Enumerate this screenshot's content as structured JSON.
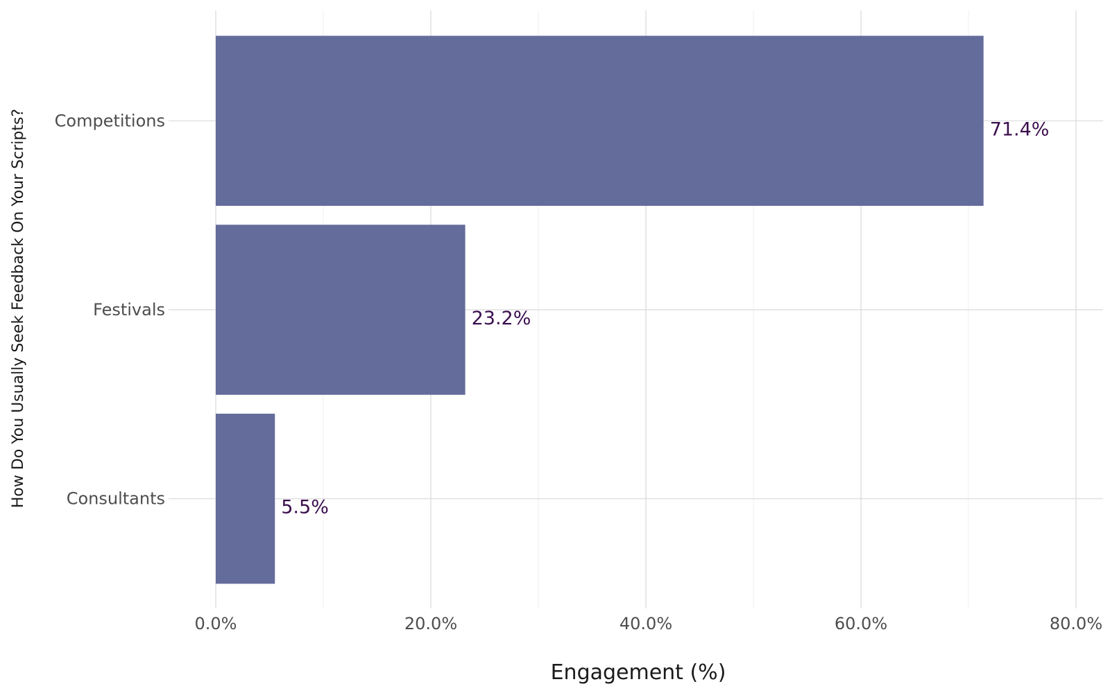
{
  "chart_data": {
    "type": "bar",
    "orientation": "horizontal",
    "categories": [
      "Competitions",
      "Festivals",
      "Consultants"
    ],
    "values": [
      71.4,
      23.2,
      5.5
    ],
    "data_labels": [
      "71.4%",
      "23.2%",
      "5.5%"
    ],
    "title": "",
    "xlabel": "Engagement (%)",
    "ylabel": "How Do You Usually Seek Feedback On Your Scripts?",
    "xlim": [
      0,
      82
    ],
    "xticks": [
      0,
      20,
      40,
      60,
      80
    ],
    "xtick_labels": [
      "0.0%",
      "20.0%",
      "40.0%",
      "60.0%",
      "80.0%"
    ],
    "grid": true,
    "legend": "none",
    "colors": {
      "bar": "#646c9c",
      "data_label": "#3b0f4f",
      "grid_major": "#d9d9d9",
      "grid_minor": "#efefef"
    }
  }
}
